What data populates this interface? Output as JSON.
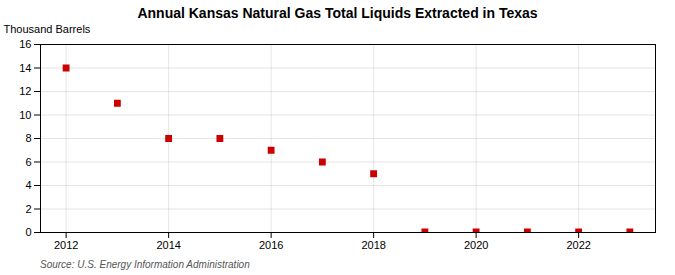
{
  "chart_data": {
    "type": "scatter",
    "title": "Annual Kansas Natural Gas Total Liquids Extracted in Texas",
    "ylabel": "Thousand Barrels",
    "source": "Source: U.S. Energy Information Administration",
    "x": [
      2012,
      2013,
      2014,
      2015,
      2016,
      2017,
      2018,
      2019,
      2020,
      2021,
      2022,
      2023
    ],
    "values": [
      14,
      11,
      8,
      8,
      7,
      6,
      5,
      0.05,
      0.05,
      0.05,
      0.05,
      0.05
    ],
    "color": "#cc0000",
    "marker": "square",
    "xlim": [
      2011.5,
      2023.5
    ],
    "xticks": [
      2012,
      2014,
      2016,
      2018,
      2020,
      2022
    ],
    "ylim": [
      0,
      16
    ],
    "yticks": [
      0,
      2,
      4,
      6,
      8,
      10,
      12,
      14,
      16
    ],
    "grid": true
  }
}
